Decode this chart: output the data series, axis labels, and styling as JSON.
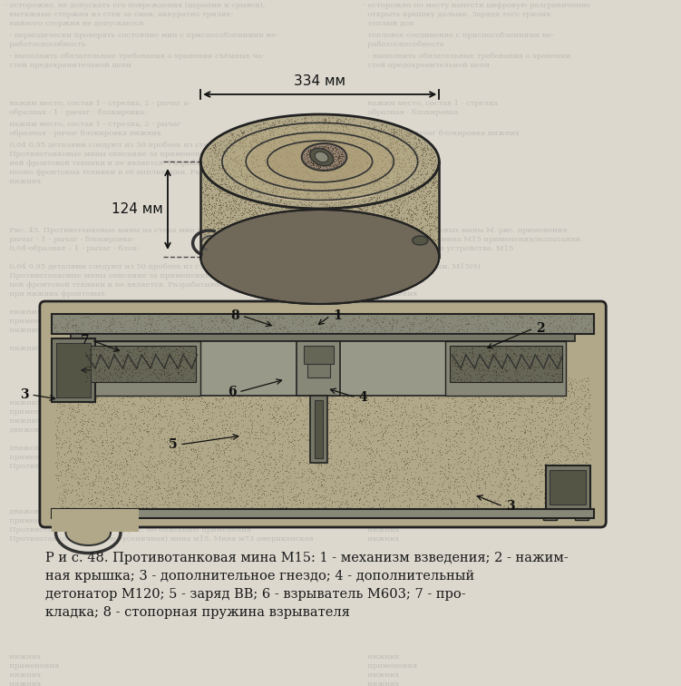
{
  "page_bg": "#dcd8ce",
  "fig_width": 7.51,
  "fig_height": 7.56,
  "dpi": 100,
  "caption_line1": "Р и с. 48. Противотанковая мина М15: 1 - механизм взведения; 2 - нажим-",
  "caption_line2": "ная крышка; 3 - дополнительное гнездо; 4 - дополнительный",
  "caption_line3": "детонатор М120; 5 - заряд ВВ; 6 - взрыватель М603; 7 - про-",
  "caption_line4": "кладка; 8 - стопорная пружина взрывателя",
  "dim_334": "334 мм",
  "dim_124": "124 мм",
  "text_color": "#1a1a1a",
  "mine_body_color": "#b0a888",
  "mine_dark": "#706858",
  "mine_mid": "#988878",
  "mine_light": "#c8b898",
  "stipple_color": "#504030",
  "border_color": "#333333",
  "bg_text_color": "#909090"
}
